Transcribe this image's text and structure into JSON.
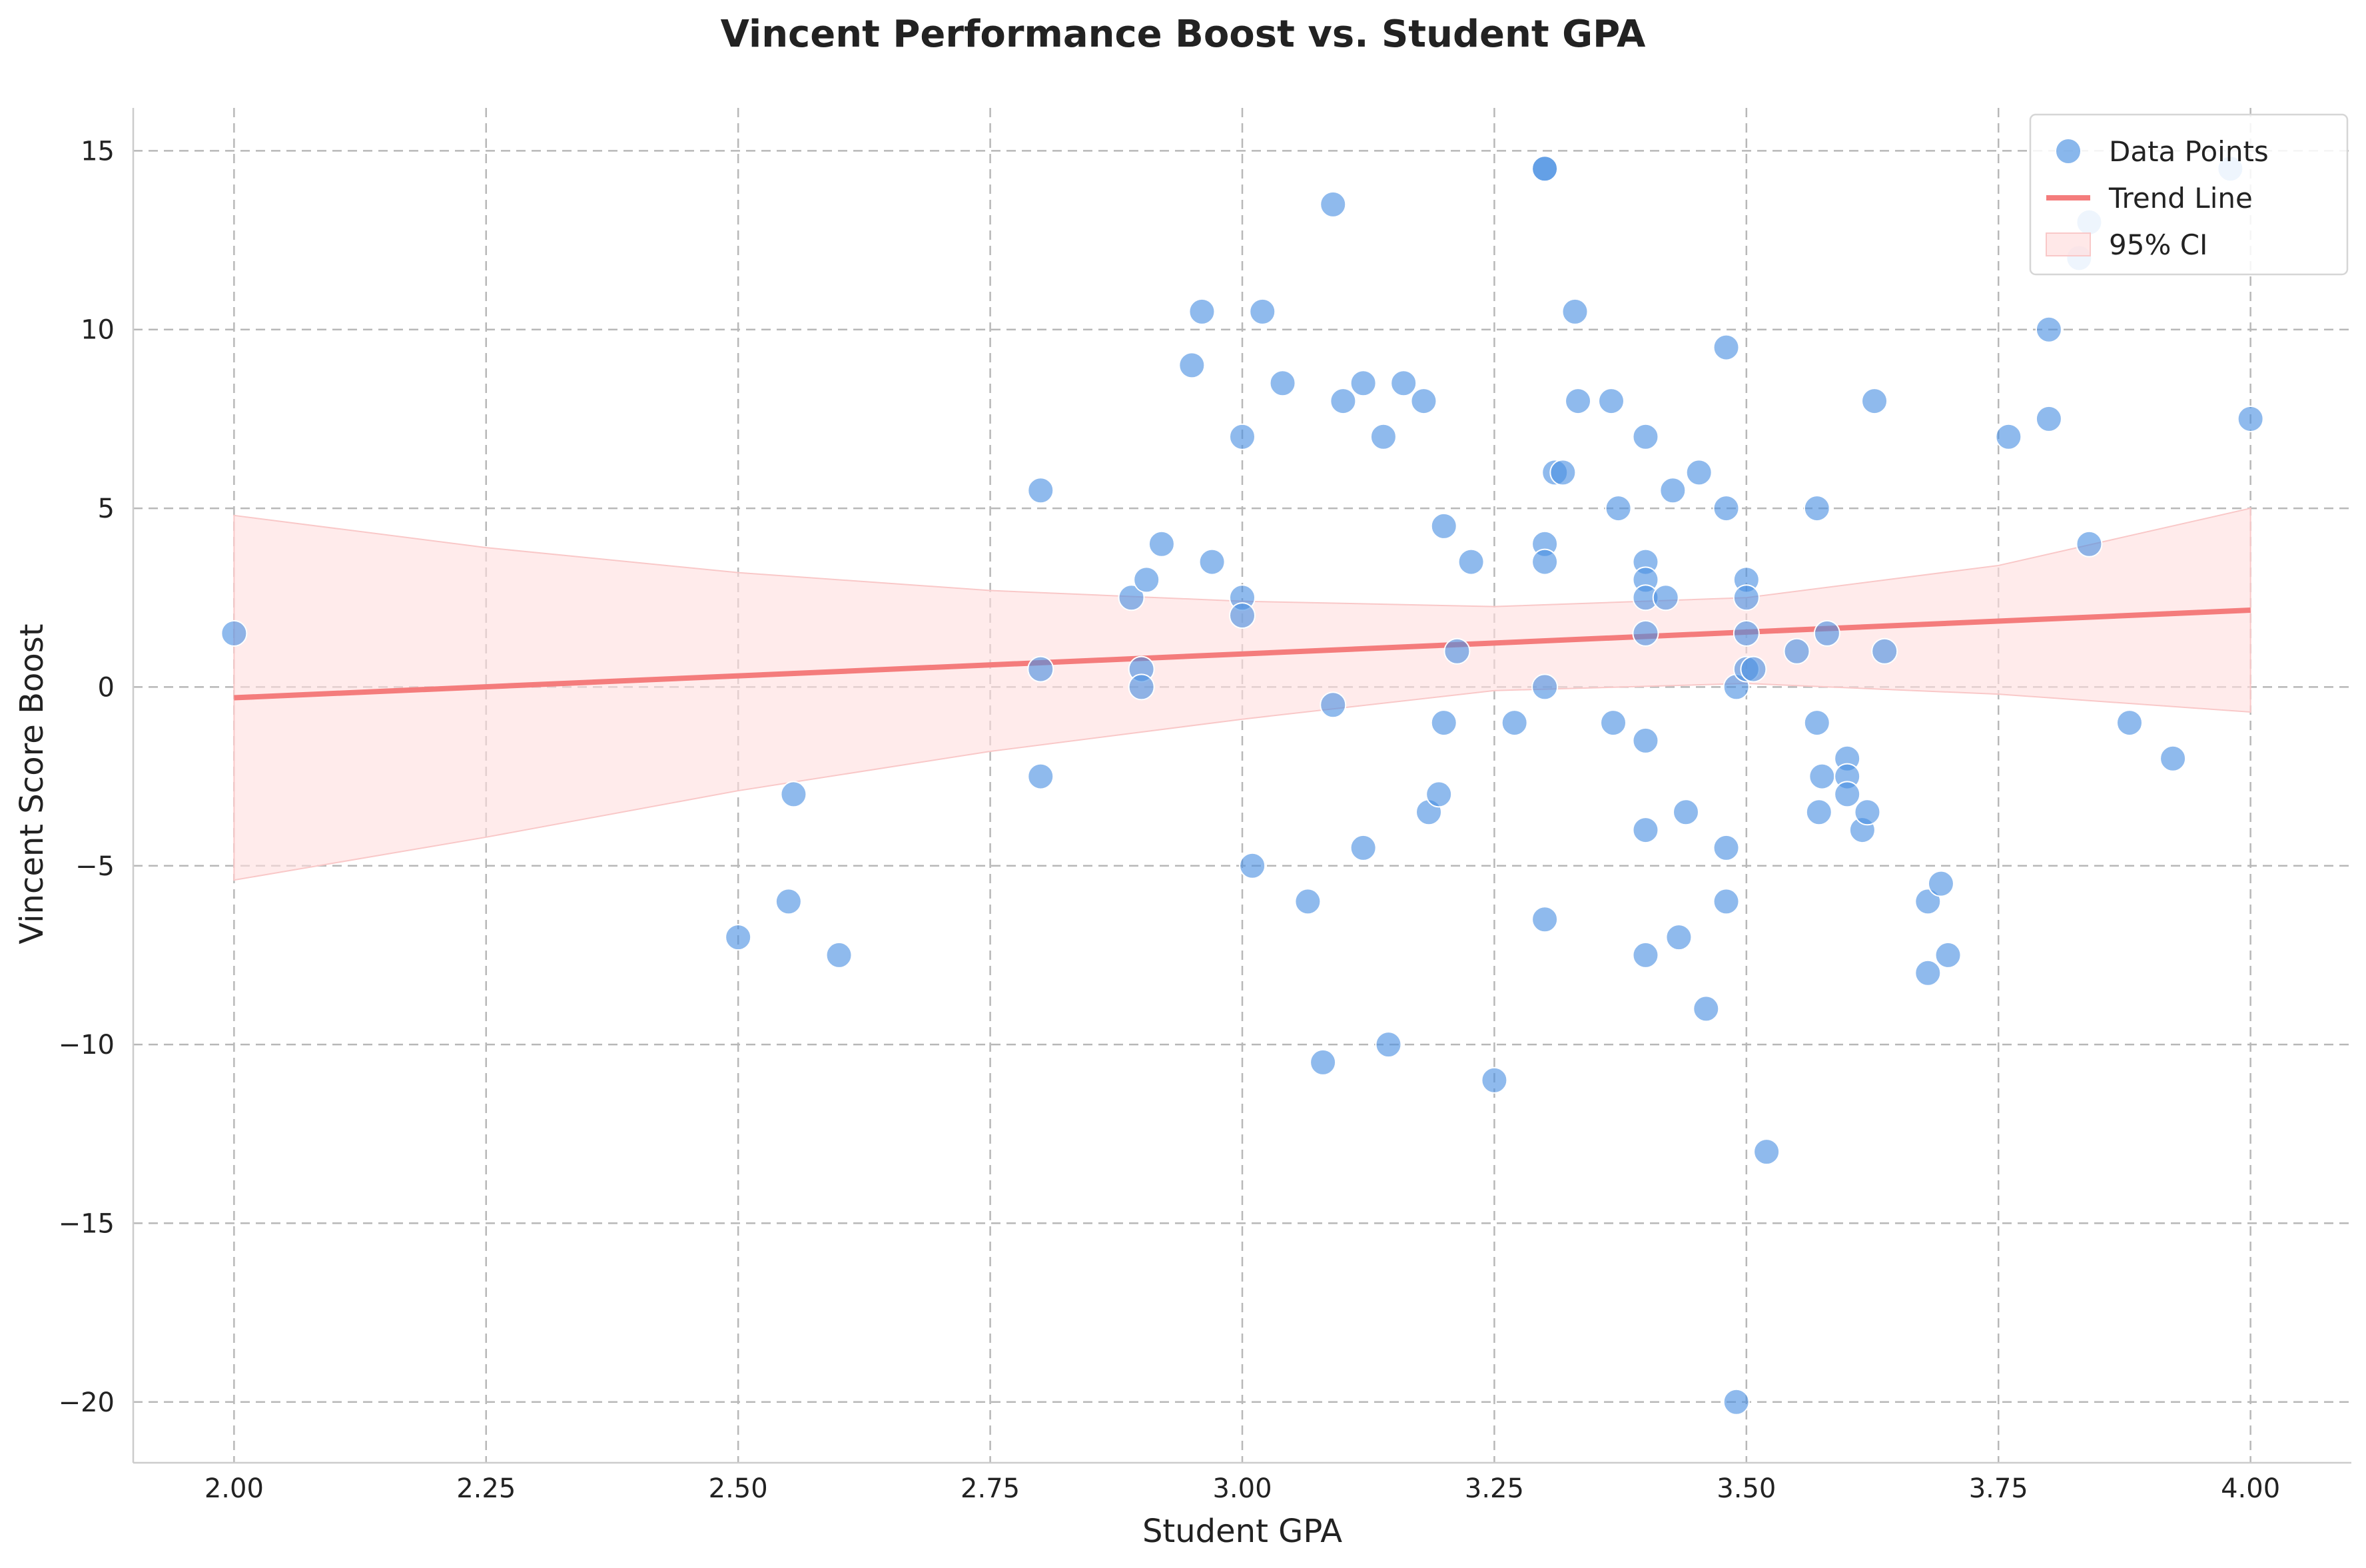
{
  "chart_data": {
    "type": "scatter",
    "title": "Vincent Performance Boost vs. Student GPA",
    "xlabel": "Student GPA",
    "ylabel": "Vincent Score Boost",
    "xlim": [
      1.9,
      4.1
    ],
    "ylim": [
      -21.7,
      16.2
    ],
    "xticks": [
      "2.00",
      "2.25",
      "2.50",
      "2.75",
      "3.00",
      "3.25",
      "3.50",
      "3.75",
      "4.00"
    ],
    "yticks": [
      "15",
      "10",
      "5",
      "0",
      "−5",
      "−10",
      "−15",
      "−20"
    ],
    "xtick_values": [
      2.0,
      2.25,
      2.5,
      2.75,
      3.0,
      3.25,
      3.5,
      3.75,
      4.0
    ],
    "ytick_values": [
      15,
      10,
      5,
      0,
      -5,
      -10,
      -15,
      -20
    ],
    "grid": true,
    "legend": {
      "placement": "top-right",
      "items": [
        "Data Points",
        "Trend Line",
        "95% CI"
      ]
    },
    "colors": {
      "points": "#4a90e2",
      "trend": "#f47c7c",
      "ci": "#ffdede"
    },
    "series": [
      {
        "name": "Data Points",
        "type": "scatter",
        "points": [
          [
            2.0,
            1.5
          ],
          [
            2.5,
            -7.0
          ],
          [
            2.55,
            -6.0
          ],
          [
            2.555,
            -3.0
          ],
          [
            2.6,
            -7.5
          ],
          [
            2.8,
            5.5
          ],
          [
            2.8,
            0.5
          ],
          [
            2.8,
            -2.5
          ],
          [
            2.89,
            2.5
          ],
          [
            2.9,
            0.5
          ],
          [
            2.9,
            0.0
          ],
          [
            2.905,
            3.0
          ],
          [
            2.92,
            4.0
          ],
          [
            2.95,
            9.0
          ],
          [
            2.96,
            10.5
          ],
          [
            2.97,
            3.5
          ],
          [
            3.0,
            7.0
          ],
          [
            3.0,
            2.5
          ],
          [
            3.0,
            2.0
          ],
          [
            3.01,
            -5.0
          ],
          [
            3.02,
            10.5
          ],
          [
            3.04,
            8.5
          ],
          [
            3.065,
            -6.0
          ],
          [
            3.08,
            -10.5
          ],
          [
            3.09,
            13.5
          ],
          [
            3.09,
            -0.5
          ],
          [
            3.1,
            8.0
          ],
          [
            3.12,
            8.5
          ],
          [
            3.12,
            -4.5
          ],
          [
            3.14,
            7.0
          ],
          [
            3.145,
            -10.0
          ],
          [
            3.16,
            8.5
          ],
          [
            3.18,
            8.0
          ],
          [
            3.185,
            -3.5
          ],
          [
            3.195,
            -3.0
          ],
          [
            3.2,
            4.5
          ],
          [
            3.2,
            -1.0
          ],
          [
            3.213,
            1.0
          ],
          [
            3.227,
            3.5
          ],
          [
            3.25,
            -11.0
          ],
          [
            3.27,
            -1.0
          ],
          [
            3.3,
            14.5
          ],
          [
            3.3,
            14.5
          ],
          [
            3.3,
            4.0
          ],
          [
            3.3,
            3.5
          ],
          [
            3.3,
            0.0
          ],
          [
            3.3,
            -6.5
          ],
          [
            3.31,
            6.0
          ],
          [
            3.318,
            6.0
          ],
          [
            3.33,
            10.5
          ],
          [
            3.333,
            8.0
          ],
          [
            3.366,
            8.0
          ],
          [
            3.368,
            -1.0
          ],
          [
            3.373,
            5.0
          ],
          [
            3.4,
            7.0
          ],
          [
            3.4,
            3.5
          ],
          [
            3.4,
            3.0
          ],
          [
            3.4,
            2.5
          ],
          [
            3.4,
            1.5
          ],
          [
            3.4,
            -1.5
          ],
          [
            3.4,
            -4.0
          ],
          [
            3.4,
            -7.5
          ],
          [
            3.42,
            2.5
          ],
          [
            3.427,
            5.5
          ],
          [
            3.433,
            -7.0
          ],
          [
            3.44,
            -3.5
          ],
          [
            3.453,
            6.0
          ],
          [
            3.46,
            -9.0
          ],
          [
            3.48,
            9.5
          ],
          [
            3.48,
            5.0
          ],
          [
            3.48,
            -4.5
          ],
          [
            3.48,
            -6.0
          ],
          [
            3.49,
            0.0
          ],
          [
            3.49,
            -20.0
          ],
          [
            3.5,
            3.0
          ],
          [
            3.5,
            2.5
          ],
          [
            3.5,
            1.5
          ],
          [
            3.5,
            0.5
          ],
          [
            3.507,
            0.5
          ],
          [
            3.52,
            -13.0
          ],
          [
            3.55,
            1.0
          ],
          [
            3.57,
            5.0
          ],
          [
            3.57,
            -1.0
          ],
          [
            3.572,
            -3.5
          ],
          [
            3.575,
            -2.5
          ],
          [
            3.58,
            1.5
          ],
          [
            3.6,
            -2.0
          ],
          [
            3.6,
            -2.5
          ],
          [
            3.6,
            -3.0
          ],
          [
            3.615,
            -4.0
          ],
          [
            3.62,
            -3.5
          ],
          [
            3.627,
            8.0
          ],
          [
            3.637,
            1.0
          ],
          [
            3.68,
            -6.0
          ],
          [
            3.68,
            -8.0
          ],
          [
            3.693,
            -5.5
          ],
          [
            3.7,
            -7.5
          ],
          [
            3.76,
            7.0
          ],
          [
            3.8,
            10.0
          ],
          [
            3.8,
            7.5
          ],
          [
            3.83,
            12.0
          ],
          [
            3.84,
            13.0
          ],
          [
            3.84,
            4.0
          ],
          [
            3.88,
            -1.0
          ],
          [
            3.923,
            -2.0
          ],
          [
            3.98,
            14.5
          ],
          [
            4.0,
            7.5
          ]
        ]
      },
      {
        "name": "Trend Line",
        "type": "line",
        "x": [
          2.0,
          4.0
        ],
        "y": [
          -0.3,
          2.15
        ]
      },
      {
        "name": "95% CI",
        "type": "band",
        "x": [
          2.0,
          2.25,
          2.5,
          2.75,
          3.0,
          3.25,
          3.5,
          3.75,
          4.0
        ],
        "upper": [
          4.8,
          3.9,
          3.2,
          2.7,
          2.4,
          2.25,
          2.5,
          3.4,
          5.0
        ],
        "lower": [
          -5.4,
          -4.2,
          -2.9,
          -1.8,
          -0.9,
          -0.1,
          0.1,
          -0.2,
          -0.7
        ]
      }
    ]
  }
}
